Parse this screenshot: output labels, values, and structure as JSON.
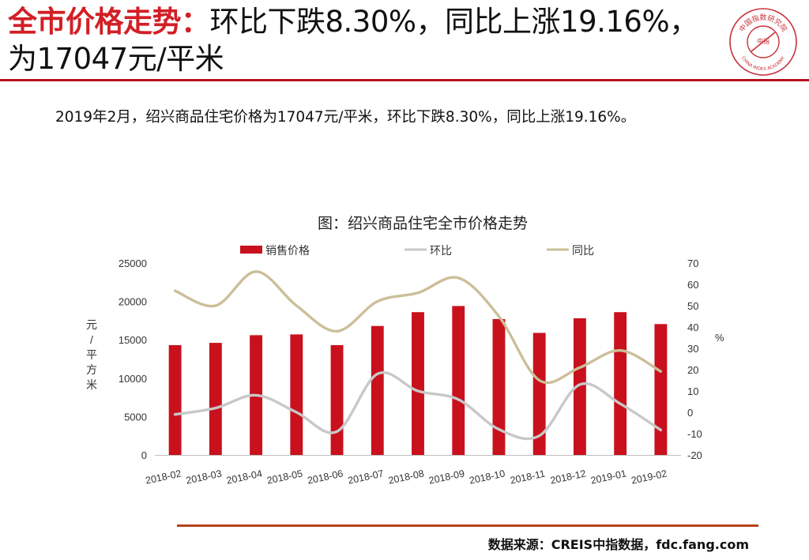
{
  "slide": {
    "title_highlight": "全市价格走势：",
    "title_rest": "环比下跌8.30%，同比上涨19.16%，为17047元/平米",
    "summary": "2019年2月，绍兴商品住宅价格为17047元/平米，环比下跌8.30%，同比上涨19.16%。",
    "source": "数据来源：CREIS中指数据，fdc.fang.com",
    "logo": {
      "top_text": "中国指数研究院",
      "center_text": "中指",
      "bottom_text": "CHINA INDEX ACADEMY"
    },
    "colors": {
      "accent": "#d21f26",
      "rule": "#b3121d",
      "bottom_rule": "#b8431b"
    }
  },
  "chart_data": {
    "type": "bar",
    "title": "图：绍兴商品住宅全市价格走势",
    "categories": [
      "2018-02",
      "2018-03",
      "2018-04",
      "2018-05",
      "2018-06",
      "2018-07",
      "2018-08",
      "2018-09",
      "2018-10",
      "2018-11",
      "2018-12",
      "2019-01",
      "2019-02"
    ],
    "ylabel": "元/平方米",
    "y2label": "%",
    "ylim": [
      0,
      25000
    ],
    "y2lim": [
      -20,
      70
    ],
    "yticks": [
      0,
      5000,
      10000,
      15000,
      20000,
      25000
    ],
    "y2ticks": [
      -20,
      -10,
      0,
      10,
      20,
      30,
      40,
      50,
      60,
      70
    ],
    "legend_position": "top",
    "series": [
      {
        "name": "销售价格",
        "kind": "bar",
        "axis": "left",
        "color": "#c8111d",
        "values": [
          14300,
          14600,
          15600,
          15700,
          14300,
          16800,
          18600,
          19400,
          17700,
          15900,
          17800,
          18600,
          17047
        ]
      },
      {
        "name": "环比",
        "kind": "line",
        "axis": "right",
        "color": "#c8c8c8",
        "values": [
          -1,
          2,
          8,
          0,
          -9,
          18,
          10,
          6,
          -8,
          -11,
          13,
          4,
          -8.3
        ]
      },
      {
        "name": "同比",
        "kind": "line",
        "axis": "right",
        "color": "#cbbf99",
        "values": [
          57,
          50,
          66,
          50,
          38,
          52,
          56,
          63,
          45,
          15,
          21,
          29,
          19.16
        ]
      }
    ]
  }
}
